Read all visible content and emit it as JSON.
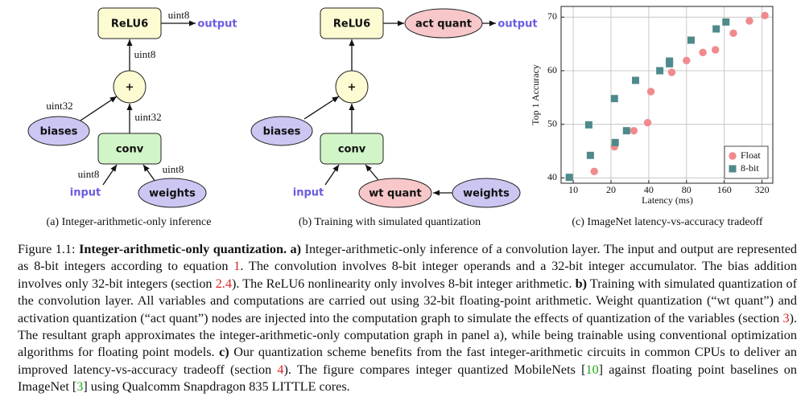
{
  "diagram_a": {
    "nodes": {
      "relu": "ReLU6",
      "add": "+",
      "conv": "conv",
      "biases": "biases",
      "weights": "weights",
      "input": "input",
      "output": "output"
    },
    "edge_labels": [
      "uint8",
      "uint8",
      "uint32",
      "uint32",
      "uint8",
      "uint8"
    ],
    "subcaption": "(a) Integer-arithmetic-only inference"
  },
  "diagram_b": {
    "nodes": {
      "relu": "ReLU6",
      "act_quant": "act quant",
      "add": "+",
      "conv": "conv",
      "biases": "biases",
      "wt_quant": "wt quant",
      "weights": "weights",
      "input": "input",
      "output": "output"
    },
    "subcaption": "(b) Training with simulated quantization"
  },
  "chart_data": {
    "type": "scatter",
    "subcaption": "(c) ImageNet latency-vs-accuracy tradeoff",
    "x_label": "Latency (ms)",
    "y_label": "Top 1 Accuracy",
    "x_scale": "log",
    "xlim": [
      8,
      390
    ],
    "ylim": [
      39,
      72
    ],
    "xticks": [
      10,
      20,
      40,
      80,
      160,
      320
    ],
    "yticks": [
      40,
      50,
      60,
      70
    ],
    "grid": true,
    "legend_position": "lower right",
    "series": [
      {
        "name": "Float",
        "color": "#f08a8e",
        "marker": "circle",
        "x": [
          14.7,
          21.3,
          30.4,
          39.2,
          41.6,
          61,
          80,
          108,
          136,
          189,
          254,
          337
        ],
        "values": [
          41.2,
          45.8,
          48.8,
          50.3,
          56.1,
          59.7,
          61.9,
          63.4,
          63.9,
          67.0,
          69.3,
          70.3
        ]
      },
      {
        "name": "8-bit",
        "color": "#4e8a8b",
        "marker": "square",
        "x": [
          9.3,
          13.7,
          13.3,
          21.6,
          21.3,
          26.6,
          31.4,
          49,
          58.5,
          58.5,
          87,
          138,
          165
        ],
        "values": [
          40.1,
          44.2,
          49.9,
          46.6,
          54.8,
          48.8,
          58.2,
          60.0,
          61.3,
          61.8,
          65.7,
          67.8,
          69.1
        ]
      }
    ]
  },
  "caption": {
    "runs": [
      "Figure 1.1:",
      "Integer-arithmetic-only quantization.",
      "a)",
      "Integer-arithmetic-only inference of a convolution layer. The input and output are represented as 8-bit integers according to equation",
      "1",
      ". The convolution involves 8-bit integer operands and a 32-bit integer accumulator. The bias addition involves only 32-bit integers (section",
      "2.4",
      "). The ReLU6 nonlinearity only involves 8-bit integer arithmetic.",
      "b)",
      "Training with simulated quantization of the convolution layer. All variables and computations are carried out using 32-bit floating-point arithmetic. Weight quantization (“wt quant”) and activation quantization (“act quant”) nodes are injected into the computation graph to simulate the effects of quantization of the variables (section",
      "3",
      "). The resultant graph approximates the integer-arithmetic-only computation graph in panel a), while being trainable using conventional optimization algorithms for floating point models.",
      "c)",
      "Our quantization scheme benefits from the fast integer-arithmetic circuits in common CPUs to deliver an improved latency-vs-accuracy tradeoff (section",
      "4",
      "). The figure compares integer quantized MobileNets [",
      "10",
      "] against floating point baselines on ImageNet [",
      "3",
      "] using Qualcomm Snapdragon 835 LITTLE cores."
    ]
  }
}
